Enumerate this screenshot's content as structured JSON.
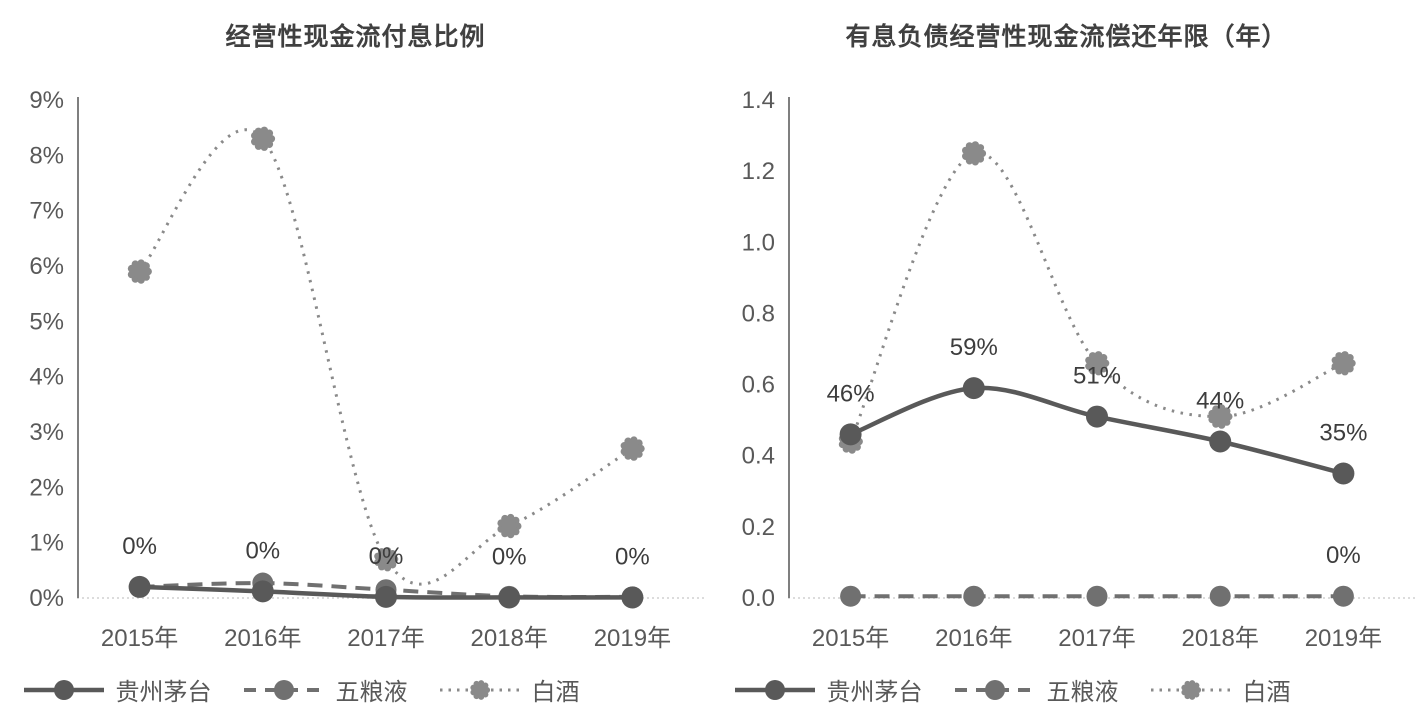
{
  "page": {
    "background": "#ffffff"
  },
  "axis_style": {
    "axis_line_color": "#7f7f7f",
    "zero_baseline_color": "#d0d0d0",
    "tick_text_color": "#595959",
    "data_label_color": "#3d3d3d"
  },
  "chart_data": [
    {
      "type": "line",
      "title": "经营性现金流付息比例",
      "categories": [
        "2015年",
        "2016年",
        "2017年",
        "2018年",
        "2019年"
      ],
      "y_tick_labels": [
        "9%",
        "8%",
        "7%",
        "6%",
        "5%",
        "4%",
        "3%",
        "2%",
        "1%",
        "0%"
      ],
      "ymin": 0,
      "ymax": 9,
      "y_unit": "%",
      "grid": "zero-baseline-only",
      "legend_position": "bottom",
      "series": [
        {
          "name": "贵州茅台",
          "line_style": "solid",
          "marker": "circle",
          "color": "#595959",
          "values": [
            0.2,
            0.12,
            0.02,
            0.01,
            0.01
          ],
          "data_labels": [
            "0%",
            "0%",
            "0%",
            "0%",
            "0%"
          ]
        },
        {
          "name": "五粮液",
          "line_style": "dashed",
          "marker": "circle",
          "color": "#707070",
          "values": [
            0.2,
            0.27,
            0.15,
            0.03,
            0.02
          ],
          "data_labels": [
            null,
            null,
            null,
            null,
            null
          ]
        },
        {
          "name": "白酒",
          "line_style": "dotted",
          "marker": "flower",
          "color": "#8a8a8a",
          "values": [
            5.9,
            8.3,
            0.7,
            1.3,
            2.7
          ],
          "data_labels": [
            null,
            null,
            null,
            null,
            null
          ]
        }
      ]
    },
    {
      "type": "line",
      "title": "有息负债经营性现金流偿还年限（年）",
      "categories": [
        "2015年",
        "2016年",
        "2017年",
        "2018年",
        "2019年"
      ],
      "y_tick_labels": [
        "1.4",
        "1.2",
        "1.0",
        "0.8",
        "0.6",
        "0.4",
        "0.2",
        "0.0"
      ],
      "ymin": 0,
      "ymax": 1.4,
      "y_unit": "年",
      "grid": "zero-baseline-only",
      "legend_position": "bottom",
      "series": [
        {
          "name": "贵州茅台",
          "line_style": "solid",
          "marker": "circle",
          "color": "#595959",
          "values": [
            0.46,
            0.59,
            0.51,
            0.44,
            0.35
          ],
          "data_labels": [
            "46%",
            "59%",
            "51%",
            "44%",
            "35%"
          ]
        },
        {
          "name": "五粮液",
          "line_style": "dashed",
          "marker": "circle",
          "color": "#707070",
          "values": [
            0.005,
            0.005,
            0.005,
            0.005,
            0.005
          ],
          "data_labels": [
            null,
            null,
            null,
            null,
            "0%"
          ]
        },
        {
          "name": "白酒",
          "line_style": "dotted",
          "marker": "flower",
          "color": "#8a8a8a",
          "values": [
            0.44,
            1.25,
            0.66,
            0.51,
            0.66
          ],
          "data_labels": [
            null,
            null,
            null,
            null,
            null
          ]
        }
      ]
    }
  ]
}
